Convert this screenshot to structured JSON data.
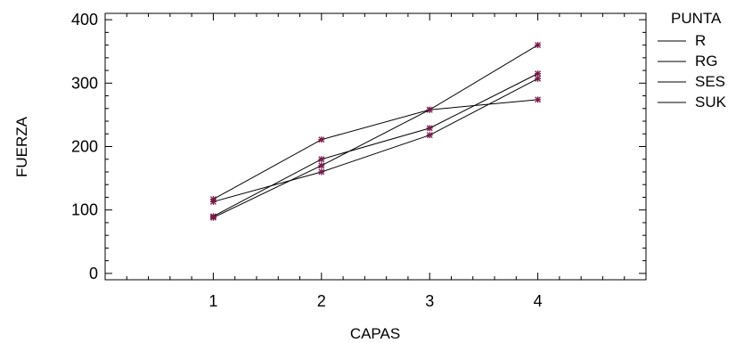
{
  "chart_data": {
    "type": "line",
    "title": "",
    "xlabel": "CAPAS",
    "ylabel": "FUERZA",
    "x": [
      1,
      2,
      3,
      4
    ],
    "xlim": [
      0,
      5
    ],
    "ylim": [
      -10,
      410
    ],
    "yticks": [
      0,
      100,
      200,
      300,
      400
    ],
    "xticks": [
      1,
      2,
      3,
      4
    ],
    "legend_title": "PUNTA",
    "legend_position": "right",
    "line_color": "#000000",
    "marker_color": "#7a1a4a",
    "series": [
      {
        "name": "R",
        "values": [
          88,
          170,
          258,
          360
        ]
      },
      {
        "name": "RG",
        "values": [
          117,
          211,
          258,
          274
        ]
      },
      {
        "name": "SES",
        "values": [
          90,
          180,
          229,
          315
        ]
      },
      {
        "name": "SUK",
        "values": [
          113,
          160,
          218,
          307
        ]
      }
    ]
  }
}
